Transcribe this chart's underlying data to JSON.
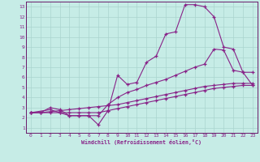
{
  "xlabel": "Windchill (Refroidissement éolien,°C)",
  "bg_color": "#c6ece6",
  "grid_color": "#aad4ce",
  "line_color": "#882288",
  "spine_color": "#6a1a6a",
  "xlim": [
    -0.5,
    23.5
  ],
  "ylim": [
    0.5,
    13.5
  ],
  "xticks": [
    0,
    1,
    2,
    3,
    4,
    5,
    6,
    7,
    8,
    9,
    10,
    11,
    12,
    13,
    14,
    15,
    16,
    17,
    18,
    19,
    20,
    21,
    22,
    23
  ],
  "yticks": [
    1,
    2,
    3,
    4,
    5,
    6,
    7,
    8,
    9,
    10,
    11,
    12,
    13
  ],
  "line1_x": [
    0,
    1,
    2,
    3,
    4,
    5,
    6,
    7,
    8,
    9,
    10,
    11,
    12,
    13,
    14,
    15,
    16,
    17,
    18,
    19,
    20,
    21,
    22,
    23
  ],
  "line1_y": [
    2.5,
    2.5,
    3.0,
    2.8,
    2.2,
    2.2,
    2.2,
    1.3,
    2.7,
    6.2,
    5.3,
    5.5,
    7.5,
    8.1,
    10.3,
    10.5,
    13.2,
    13.2,
    13.0,
    12.0,
    9.0,
    8.8,
    6.5,
    6.5
  ],
  "line2_x": [
    0,
    2,
    3,
    4,
    5,
    6,
    7,
    8,
    9,
    10,
    11,
    12,
    13,
    14,
    15,
    16,
    17,
    18,
    19,
    20,
    21,
    22,
    23
  ],
  "line2_y": [
    2.5,
    2.8,
    2.5,
    2.2,
    2.2,
    2.2,
    2.2,
    3.3,
    4.0,
    4.5,
    4.8,
    5.2,
    5.5,
    5.8,
    6.2,
    6.6,
    7.0,
    7.3,
    8.8,
    8.7,
    6.7,
    6.5,
    5.2
  ],
  "line3_x": [
    0,
    1,
    2,
    3,
    4,
    5,
    6,
    7,
    8,
    9,
    10,
    11,
    12,
    13,
    14,
    15,
    16,
    17,
    18,
    19,
    20,
    21,
    22,
    23
  ],
  "line3_y": [
    2.5,
    2.5,
    2.6,
    2.7,
    2.8,
    2.9,
    3.0,
    3.1,
    3.2,
    3.3,
    3.5,
    3.7,
    3.9,
    4.1,
    4.3,
    4.5,
    4.7,
    4.9,
    5.1,
    5.2,
    5.3,
    5.4,
    5.4,
    5.4
  ],
  "line4_x": [
    0,
    1,
    2,
    3,
    4,
    5,
    6,
    7,
    8,
    9,
    10,
    11,
    12,
    13,
    14,
    15,
    16,
    17,
    18,
    19,
    20,
    21,
    22,
    23
  ],
  "line4_y": [
    2.5,
    2.5,
    2.5,
    2.5,
    2.5,
    2.5,
    2.5,
    2.5,
    2.7,
    2.9,
    3.1,
    3.3,
    3.5,
    3.7,
    3.9,
    4.1,
    4.3,
    4.5,
    4.7,
    4.9,
    5.0,
    5.1,
    5.2,
    5.2
  ]
}
